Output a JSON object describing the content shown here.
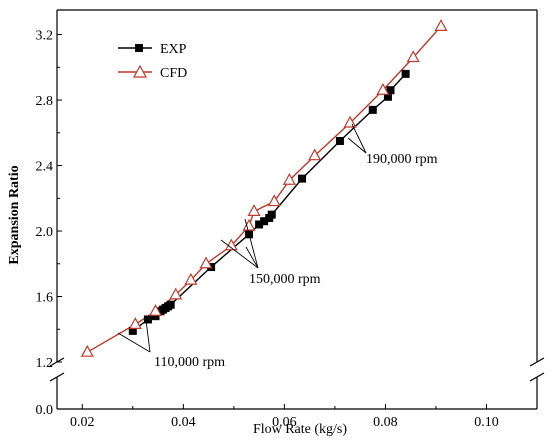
{
  "chart_data": {
    "type": "scatter",
    "xlabel": "Flow Rate (kg/s)",
    "ylabel": "Expansion Ratio",
    "xlim": [
      0.015,
      0.11
    ],
    "x_ticks": [
      "0.02",
      "0.04",
      "0.06",
      "0.08",
      "0.10"
    ],
    "y_ticks_upper": [
      "1.2",
      "1.6",
      "2.0",
      "2.4",
      "2.8",
      "3.2"
    ],
    "y_ticks_lower": [
      "0.0"
    ],
    "ylim_upper": [
      1.2,
      3.35
    ],
    "ylim_lower": [
      0.0,
      0.2
    ],
    "axis_break": [
      0.2,
      1.2
    ],
    "legend_position": "top-left",
    "series": [
      {
        "name": "EXP",
        "marker": "filled-square",
        "color": "#000000",
        "x": [
          0.03,
          0.033,
          0.0345,
          0.0355,
          0.036,
          0.0365,
          0.037,
          0.0375,
          0.0455,
          0.053,
          0.055,
          0.056,
          0.057,
          0.0575,
          0.0635,
          0.071,
          0.0775,
          0.0805,
          0.081,
          0.084
        ],
        "y": [
          1.39,
          1.46,
          1.48,
          1.51,
          1.52,
          1.53,
          1.54,
          1.55,
          1.78,
          1.98,
          2.04,
          2.06,
          2.08,
          2.1,
          2.32,
          2.55,
          2.74,
          2.82,
          2.86,
          2.96
        ]
      },
      {
        "name": "CFD",
        "marker": "open-triangle",
        "color": "#c0392b",
        "x": [
          0.021,
          0.0305,
          0.0345,
          0.0385,
          0.0415,
          0.0445,
          0.0495,
          0.053,
          0.054,
          0.058,
          0.061,
          0.066,
          0.073,
          0.0795,
          0.0855,
          0.091
        ],
        "y": [
          1.26,
          1.43,
          1.51,
          1.61,
          1.7,
          1.8,
          1.91,
          2.03,
          2.12,
          2.18,
          2.31,
          2.46,
          2.66,
          2.86,
          3.06,
          3.25
        ]
      }
    ],
    "annotations": [
      {
        "text": "110,000 rpm"
      },
      {
        "text": "150,000 rpm"
      },
      {
        "text": "190,000 rpm"
      }
    ]
  }
}
